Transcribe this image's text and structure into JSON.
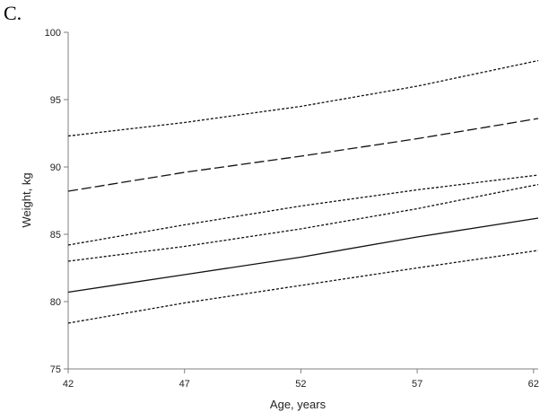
{
  "chart_data": {
    "type": "line",
    "panel_label": "C.",
    "title": "",
    "xlabel": "Age, years",
    "ylabel": "Weight, kg",
    "xlim": [
      42,
      62.2
    ],
    "ylim": [
      75,
      100
    ],
    "x_ticks": [
      42,
      47,
      52,
      57,
      62
    ],
    "y_ticks": [
      75,
      80,
      85,
      90,
      95,
      100
    ],
    "grid": false,
    "series": [
      {
        "style": "dotted",
        "x": [
          42,
          47,
          52,
          57,
          62.2
        ],
        "y": [
          92.3,
          93.3,
          94.5,
          96.0,
          97.9
        ]
      },
      {
        "style": "dashed",
        "x": [
          42,
          47,
          52,
          57,
          62.2
        ],
        "y": [
          88.2,
          89.6,
          90.8,
          92.1,
          93.6
        ]
      },
      {
        "style": "dotted",
        "x": [
          42,
          47,
          52,
          57,
          62.2
        ],
        "y": [
          84.2,
          85.7,
          87.1,
          88.3,
          89.4
        ]
      },
      {
        "style": "dotted",
        "x": [
          42,
          47,
          52,
          57,
          62.2
        ],
        "y": [
          83.0,
          84.1,
          85.4,
          86.9,
          88.7
        ]
      },
      {
        "style": "solid",
        "x": [
          42,
          47,
          52,
          57,
          62.2
        ],
        "y": [
          80.7,
          82.0,
          83.3,
          84.8,
          86.2
        ]
      },
      {
        "style": "dotted",
        "x": [
          42,
          47,
          52,
          57,
          62.2
        ],
        "y": [
          78.4,
          79.9,
          81.2,
          82.5,
          83.8
        ]
      }
    ]
  }
}
